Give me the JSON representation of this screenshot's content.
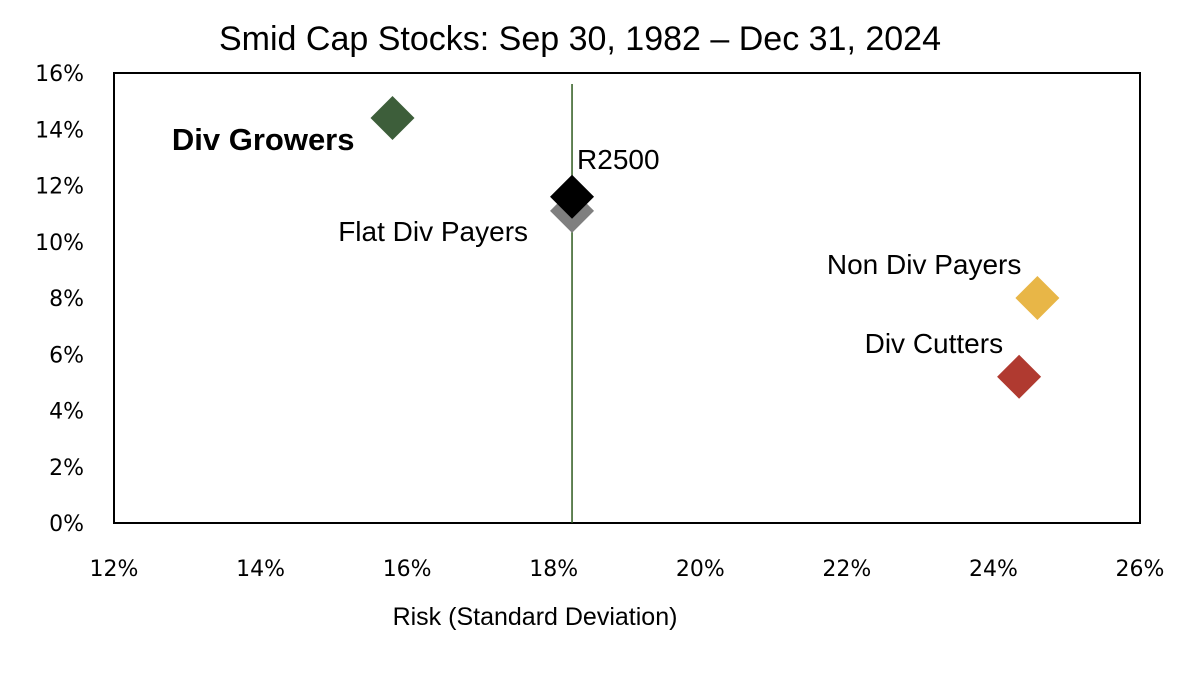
{
  "chart_data": {
    "type": "scatter",
    "title": "Smid Cap Stocks: Sep 30, 1982 – Dec 31, 2024",
    "xlabel": "Risk (Standard Deviation)",
    "ylabel": "",
    "xlim": [
      0.12,
      0.26
    ],
    "ylim": [
      0.0,
      0.16
    ],
    "x_ticks": [
      "12%",
      "14%",
      "16%",
      "18%",
      "20%",
      "22%",
      "24%",
      "26%"
    ],
    "y_ticks": [
      "0%",
      "2%",
      "4%",
      "6%",
      "8%",
      "10%",
      "12%",
      "14%",
      "16%"
    ],
    "reference_line_x": 0.1825,
    "grid": false,
    "legend": "none",
    "marker": "diamond",
    "points": [
      {
        "label": "Div Growers",
        "x": 0.158,
        "y": 0.144,
        "color": "#3d5e3a",
        "label_bold": true,
        "label_side": "left"
      },
      {
        "label": "Flat Div Payers",
        "x": 0.1825,
        "y": 0.111,
        "color": "#7f7f7f",
        "label_bold": false,
        "label_side": "left"
      },
      {
        "label": "R2500",
        "x": 0.1825,
        "y": 0.116,
        "color": "#000000",
        "label_bold": false,
        "label_side": "above-right"
      },
      {
        "label": "Non Div Payers",
        "x": 0.246,
        "y": 0.08,
        "color": "#e8b647",
        "label_bold": false,
        "label_side": "above-left"
      },
      {
        "label": "Div Cutters",
        "x": 0.2435,
        "y": 0.052,
        "color": "#b03a30",
        "label_bold": false,
        "label_side": "above-left"
      }
    ],
    "colors": {
      "axis": "#000000",
      "reference_line": "#2e5a1e"
    }
  }
}
